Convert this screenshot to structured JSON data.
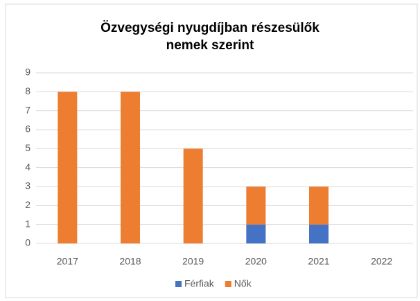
{
  "chart_data": {
    "type": "stacked_bar",
    "title": "Özvegységi nyugdíjban részesülők nemek szerint",
    "categories": [
      "2017",
      "2018",
      "2019",
      "2020",
      "2021",
      "2022"
    ],
    "series": [
      {
        "name": "Férfiak",
        "color": "#4472c4",
        "values": [
          0,
          0,
          0,
          1,
          1,
          0
        ]
      },
      {
        "name": "Nők",
        "color": "#ed7d31",
        "values": [
          8,
          8,
          5,
          2,
          2,
          0
        ]
      }
    ],
    "ylim": [
      0,
      9
    ],
    "yticks": [
      0,
      1,
      2,
      3,
      4,
      5,
      6,
      7,
      8,
      9
    ],
    "grid": true,
    "legend": "bottom"
  }
}
